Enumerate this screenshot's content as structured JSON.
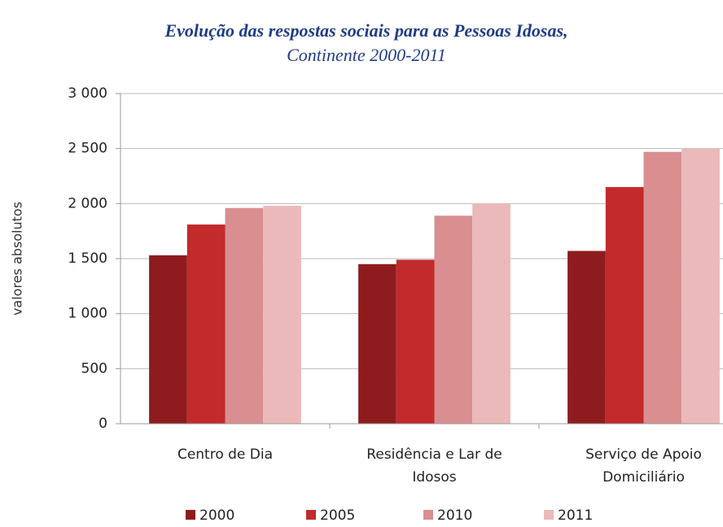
{
  "chart_data": {
    "type": "bar",
    "title": "Evolução das respostas sociais para as Pessoas Idosas,",
    "subtitle": "Continente 2000-2011",
    "y_label": "valores absolutos",
    "categories": [
      "Centro de Dia",
      "Residência e  Lar de Idosos",
      "Serviço de Apoio Domiciliário"
    ],
    "series": [
      {
        "name": "2000",
        "color": "#8e1c1e",
        "values": [
          1530,
          1450,
          1570
        ]
      },
      {
        "name": "2005",
        "color": "#c22a2c",
        "values": [
          1810,
          1490,
          2150
        ]
      },
      {
        "name": "2010",
        "color": "#d98e90",
        "values": [
          1960,
          1890,
          2470
        ]
      },
      {
        "name": "2011",
        "color": "#ebb9ba",
        "values": [
          1980,
          2000,
          2500
        ]
      }
    ],
    "ylim": [
      0,
      3000
    ],
    "yticks": [
      0,
      500,
      {
        "value": 1000,
        "label": "1 000"
      },
      {
        "value": 1500,
        "label": "1 500"
      },
      {
        "value": 2000,
        "label": "2 000"
      },
      {
        "value": 2500,
        "label": "2 500"
      },
      {
        "value": 3000,
        "label": "3 000"
      }
    ],
    "grid": true,
    "legend": "bottom"
  }
}
